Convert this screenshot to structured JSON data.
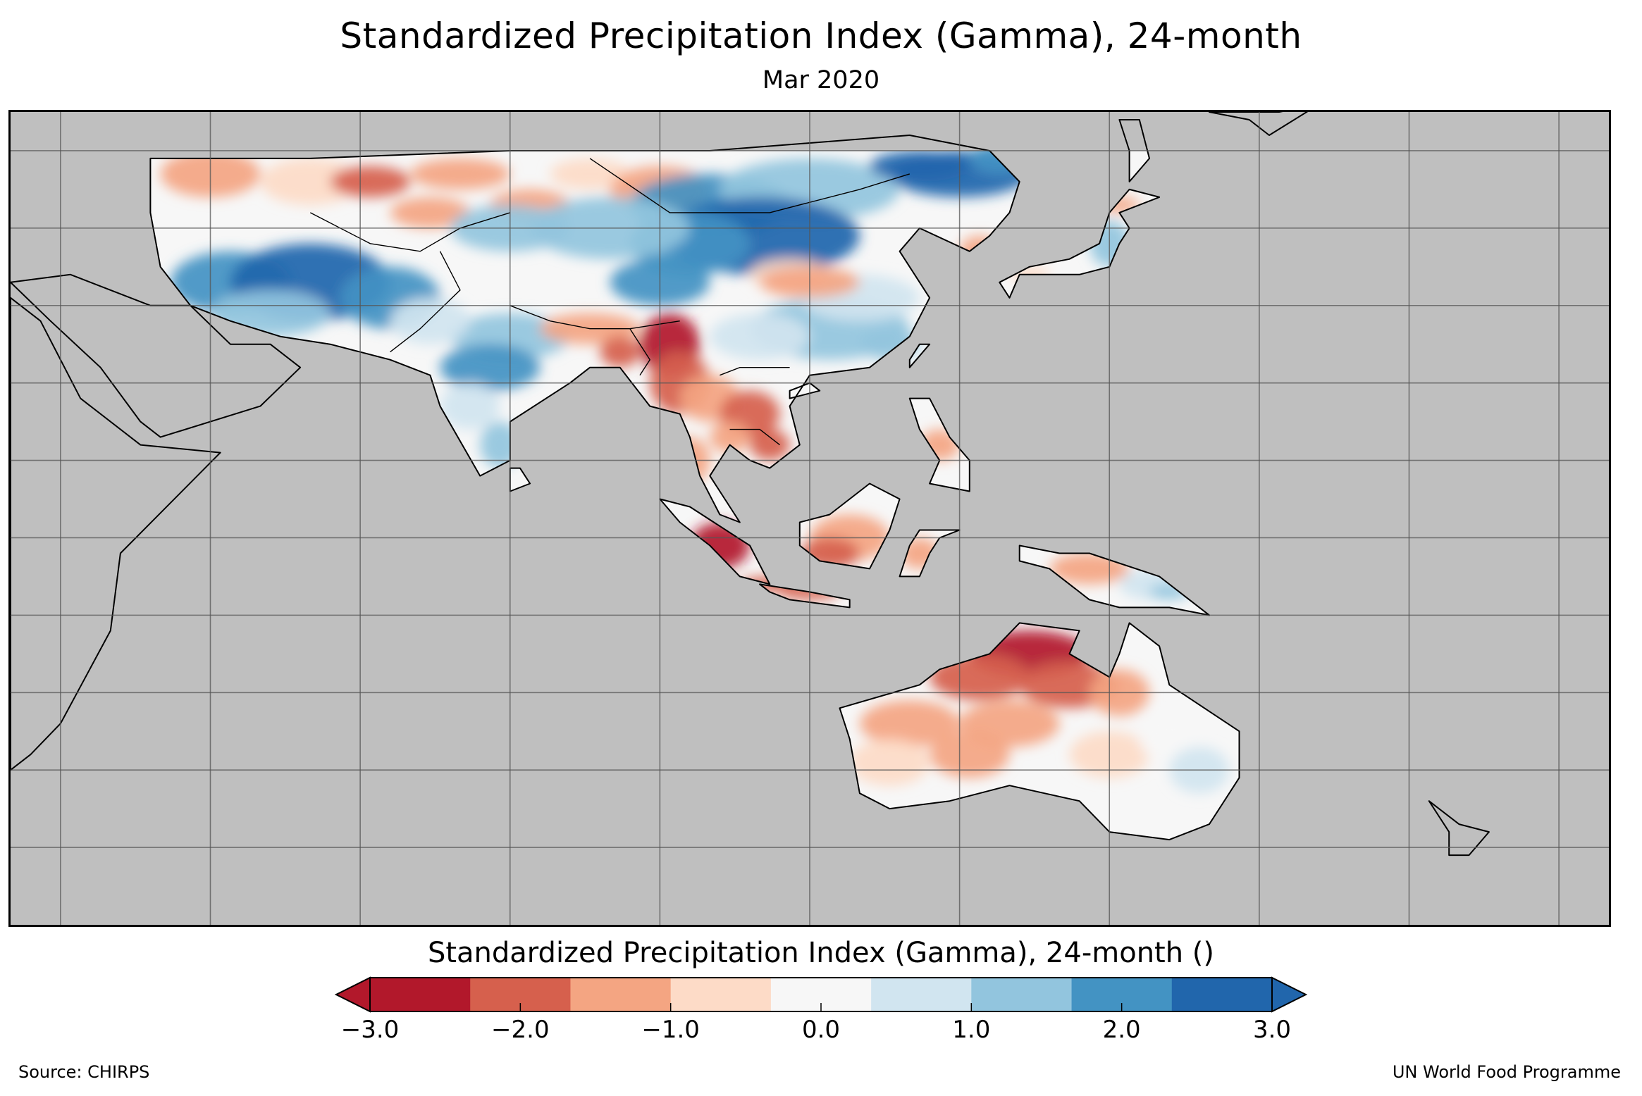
{
  "title": "Standardized Precipitation Index (Gamma), 24-month",
  "subtitle": "Mar 2020",
  "colorbar": {
    "title": "Standardized Precipitation Index (Gamma), 24-month ()",
    "ticks": [
      "−3.0",
      "−2.0",
      "−1.0",
      "0.0",
      "1.0",
      "2.0",
      "3.0"
    ],
    "tick_values": [
      -3,
      -2,
      -1,
      0,
      1,
      2,
      3
    ],
    "range": [
      -3,
      3
    ],
    "colors": [
      "#b2182b",
      "#d6604d",
      "#f4a582",
      "#fddbc7",
      "#f7f7f7",
      "#d1e5f0",
      "#92c5de",
      "#4393c3",
      "#2166ac"
    ],
    "extend_low_color": "#b2182b",
    "extend_high_color": "#2166ac"
  },
  "map": {
    "no_data_color": "#bfbfbf",
    "lon_range": [
      30,
      190
    ],
    "lat_range": [
      -50,
      55
    ],
    "grid_lons": [
      35,
      50,
      65,
      80,
      95,
      110,
      125,
      140,
      155,
      170,
      185
    ],
    "grid_lats": [
      50,
      40,
      30,
      20,
      10,
      0,
      -10,
      -20,
      -30,
      -40
    ]
  },
  "footer": {
    "source": "Source: CHIRPS",
    "agency": "UN World Food Programme"
  }
}
